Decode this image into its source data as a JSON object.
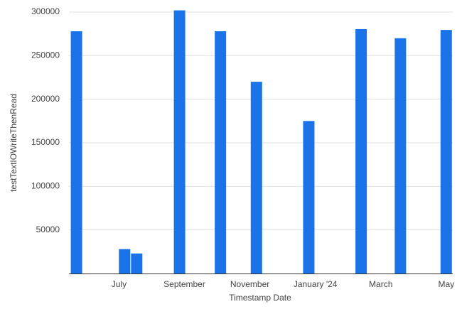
{
  "chart_data": {
    "type": "bar",
    "x_label": "Timestamp Date",
    "y_label": "testTextIOWriteThenRead",
    "x": [
      5.7,
      7.17,
      7.54,
      8.85,
      10.1,
      11.2,
      12.8,
      14.4,
      15.6,
      17.0
    ],
    "values": [
      278000,
      28000,
      23000,
      302000,
      278000,
      220000,
      175000,
      280500,
      270000,
      279500
    ],
    "color": "#1a73e8",
    "xlim": [
      5.47,
      17.2
    ],
    "xticks": [
      {
        "value": 7,
        "label": "July"
      },
      {
        "value": 9,
        "label": "September"
      },
      {
        "value": 11,
        "label": "November"
      },
      {
        "value": 13,
        "label": "January '24"
      },
      {
        "value": 15,
        "label": "March"
      },
      {
        "value": 17,
        "label": "May"
      }
    ],
    "ylim": [
      0,
      300000
    ],
    "yticks": [
      50000,
      100000,
      150000,
      200000,
      250000,
      300000
    ],
    "grid": true
  }
}
